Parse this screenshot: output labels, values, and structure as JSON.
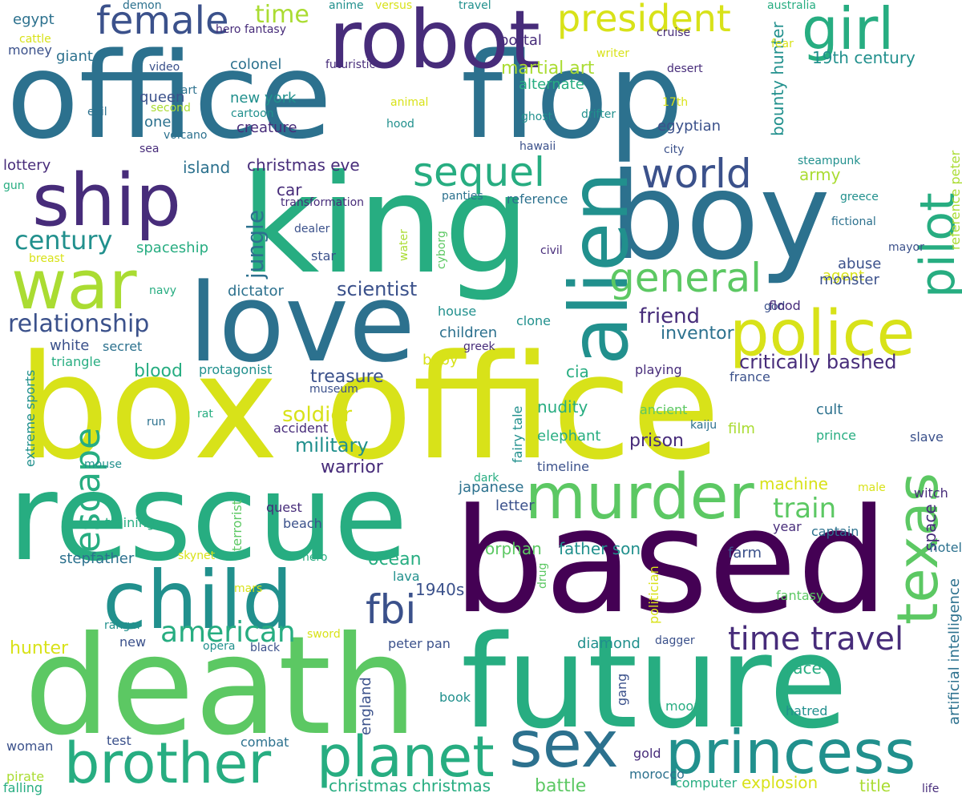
{
  "palette": {
    "p0": "#440154",
    "p1": "#472c7a",
    "p2": "#3b518b",
    "p3": "#2c718e",
    "p4": "#21908d",
    "p5": "#27ad81",
    "p6": "#5cc863",
    "p7": "#aadc32",
    "p8": "#d8e219"
  },
  "words": [
    {
      "text": "office",
      "color": "p3"
    },
    {
      "text": "flop",
      "color": "p3"
    },
    {
      "text": "box office",
      "color": "p8"
    },
    {
      "text": "king",
      "color": "p5"
    },
    {
      "text": "boy",
      "color": "p3"
    },
    {
      "text": "based",
      "color": "p0"
    },
    {
      "text": "death",
      "color": "p6"
    },
    {
      "text": "future",
      "color": "p5"
    },
    {
      "text": "rescue",
      "color": "p5"
    },
    {
      "text": "love",
      "color": "p3"
    },
    {
      "text": "robot",
      "color": "p1"
    },
    {
      "text": "ship",
      "color": "p1"
    },
    {
      "text": "war",
      "color": "p7"
    },
    {
      "text": "child",
      "color": "p4"
    },
    {
      "text": "alien",
      "color": "p4"
    },
    {
      "text": "murder",
      "color": "p6"
    },
    {
      "text": "police",
      "color": "p8"
    },
    {
      "text": "princess",
      "color": "p4"
    },
    {
      "text": "sex",
      "color": "p3"
    },
    {
      "text": "brother",
      "color": "p5"
    },
    {
      "text": "planet",
      "color": "p5"
    },
    {
      "text": "girl",
      "color": "p5"
    },
    {
      "text": "texas",
      "color": "p6"
    },
    {
      "text": "pilot",
      "color": "p5"
    },
    {
      "text": "female",
      "color": "p2"
    },
    {
      "text": "president",
      "color": "p8"
    },
    {
      "text": "sequel",
      "color": "p5"
    },
    {
      "text": "world",
      "color": "p2"
    },
    {
      "text": "general",
      "color": "p6"
    },
    {
      "text": "escape",
      "color": "p5"
    },
    {
      "text": "fbi",
      "color": "p2"
    },
    {
      "text": "time travel",
      "color": "p1"
    },
    {
      "text": "american",
      "color": "p5"
    },
    {
      "text": "train",
      "color": "p6"
    },
    {
      "text": "century",
      "color": "p4"
    },
    {
      "text": "relationship",
      "color": "p2"
    },
    {
      "text": "time",
      "color": "p7"
    },
    {
      "text": "jungle",
      "color": "p3"
    },
    {
      "text": "critically bashed",
      "color": "p1"
    },
    {
      "text": "friend",
      "color": "p1"
    },
    {
      "text": "treasure",
      "color": "p2"
    },
    {
      "text": "soldier",
      "color": "p8"
    },
    {
      "text": "military",
      "color": "p4"
    },
    {
      "text": "scientist",
      "color": "p2"
    },
    {
      "text": "christmas christmas",
      "color": "p5"
    },
    {
      "text": "battle",
      "color": "p6"
    },
    {
      "text": "explosion",
      "color": "p8"
    },
    {
      "text": "19th century",
      "color": "p4"
    },
    {
      "text": "martial art",
      "color": "p7"
    },
    {
      "text": "bounty hunter",
      "color": "p4"
    },
    {
      "text": "artificial intelligence",
      "color": "p3"
    },
    {
      "text": "reference peter",
      "color": "p7"
    },
    {
      "text": "orphan",
      "color": "p6"
    },
    {
      "text": "father son",
      "color": "p4"
    },
    {
      "text": "prison",
      "color": "p1"
    },
    {
      "text": "warrior",
      "color": "p1"
    },
    {
      "text": "machine",
      "color": "p8"
    },
    {
      "text": "space",
      "color": "p1"
    },
    {
      "text": "inventor",
      "color": "p3"
    },
    {
      "text": "christmas eve",
      "color": "p1"
    },
    {
      "text": "island",
      "color": "p3"
    },
    {
      "text": "blood",
      "color": "p5"
    },
    {
      "text": "ocean",
      "color": "p5"
    },
    {
      "text": "race",
      "color": "p5"
    },
    {
      "text": "1940s",
      "color": "p2"
    },
    {
      "text": "england",
      "color": "p2"
    },
    {
      "text": "agent",
      "color": "p8"
    },
    {
      "text": "army",
      "color": "p7"
    },
    {
      "text": "hunter",
      "color": "p8"
    },
    {
      "text": "title",
      "color": "p7"
    },
    {
      "text": "colonel",
      "color": "p3"
    },
    {
      "text": "new york",
      "color": "p4"
    },
    {
      "text": "creature",
      "color": "p1"
    },
    {
      "text": "car",
      "color": "p1"
    },
    {
      "text": "children",
      "color": "p3"
    },
    {
      "text": "nudity",
      "color": "p5"
    },
    {
      "text": "cia",
      "color": "p5"
    },
    {
      "text": "elephant",
      "color": "p5"
    },
    {
      "text": "diamond",
      "color": "p4"
    },
    {
      "text": "farm",
      "color": "p2"
    },
    {
      "text": "film",
      "color": "p7"
    },
    {
      "text": "cult",
      "color": "p3"
    },
    {
      "text": "abuse",
      "color": "p2"
    },
    {
      "text": "monster",
      "color": "p2"
    },
    {
      "text": "portal",
      "color": "p1"
    },
    {
      "text": "alternate",
      "color": "p5"
    },
    {
      "text": "egyptian",
      "color": "p2"
    },
    {
      "text": "one",
      "color": "p3"
    },
    {
      "text": "queen",
      "color": "p2"
    },
    {
      "text": "giant",
      "color": "p3"
    },
    {
      "text": "egypt",
      "color": "p3"
    },
    {
      "text": "money",
      "color": "p2"
    },
    {
      "text": "lottery",
      "color": "p1"
    },
    {
      "text": "spaceship",
      "color": "p5"
    },
    {
      "text": "dictator",
      "color": "p3"
    },
    {
      "text": "white",
      "color": "p2"
    },
    {
      "text": "secret",
      "color": "p3"
    },
    {
      "text": "triangle",
      "color": "p5"
    },
    {
      "text": "protagonist",
      "color": "p4"
    },
    {
      "text": "extreme sports",
      "color": "p4"
    },
    {
      "text": "terrorist",
      "color": "p6"
    },
    {
      "text": "stepfather",
      "color": "p3"
    },
    {
      "text": "training",
      "color": "p5"
    },
    {
      "text": "quest",
      "color": "p1"
    },
    {
      "text": "beach",
      "color": "p2"
    },
    {
      "text": "letter",
      "color": "p2"
    },
    {
      "text": "japanese",
      "color": "p3"
    },
    {
      "text": "playing",
      "color": "p1"
    },
    {
      "text": "france",
      "color": "p2"
    },
    {
      "text": "witch",
      "color": "p1"
    },
    {
      "text": "hotel",
      "color": "p3"
    },
    {
      "text": "year",
      "color": "p1"
    },
    {
      "text": "captain",
      "color": "p3"
    },
    {
      "text": "slave",
      "color": "p2"
    },
    {
      "text": "prince",
      "color": "p5"
    },
    {
      "text": "woman",
      "color": "p2"
    },
    {
      "text": "test",
      "color": "p2"
    },
    {
      "text": "combat",
      "color": "p3"
    },
    {
      "text": "book",
      "color": "p4"
    },
    {
      "text": "gang",
      "color": "p2"
    },
    {
      "text": "moon",
      "color": "p5"
    },
    {
      "text": "hatred",
      "color": "p4"
    },
    {
      "text": "gold",
      "color": "p1"
    },
    {
      "text": "morocco",
      "color": "p3"
    },
    {
      "text": "computer",
      "color": "p5"
    },
    {
      "text": "life",
      "color": "p1"
    },
    {
      "text": "pirate",
      "color": "p7"
    },
    {
      "text": "falling",
      "color": "p5"
    },
    {
      "text": "fantasy",
      "color": "p6"
    },
    {
      "text": "politician",
      "color": "p8"
    },
    {
      "text": "drug",
      "color": "p6"
    },
    {
      "text": "dagger",
      "color": "p2"
    },
    {
      "text": "peter pan",
      "color": "p2"
    },
    {
      "text": "lava",
      "color": "p4"
    },
    {
      "text": "hero",
      "color": "p5"
    },
    {
      "text": "skynet",
      "color": "p8"
    },
    {
      "text": "new",
      "color": "p2"
    },
    {
      "text": "ranger",
      "color": "p4"
    },
    {
      "text": "mars",
      "color": "p8"
    },
    {
      "text": "sword",
      "color": "p8"
    },
    {
      "text": "opera",
      "color": "p4"
    },
    {
      "text": "black",
      "color": "p2"
    },
    {
      "text": "mouse",
      "color": "p4"
    },
    {
      "text": "rat",
      "color": "p5"
    },
    {
      "text": "run",
      "color": "p3"
    },
    {
      "text": "accident",
      "color": "p1"
    },
    {
      "text": "museum",
      "color": "p2"
    },
    {
      "text": "kaiju",
      "color": "p3"
    },
    {
      "text": "ancient",
      "color": "p6"
    },
    {
      "text": "fairy tale",
      "color": "p4"
    },
    {
      "text": "dark",
      "color": "p5"
    },
    {
      "text": "male",
      "color": "p8"
    },
    {
      "text": "timeline",
      "color": "p2"
    },
    {
      "text": "baby",
      "color": "p8"
    },
    {
      "text": "greek",
      "color": "p1"
    },
    {
      "text": "clone",
      "color": "p4"
    },
    {
      "text": "house",
      "color": "p4"
    },
    {
      "text": "god",
      "color": "p2"
    },
    {
      "text": "flood",
      "color": "p1"
    },
    {
      "text": "civil",
      "color": "p1"
    },
    {
      "text": "star",
      "color": "p2"
    },
    {
      "text": "dealer",
      "color": "p2"
    },
    {
      "text": "cyborg",
      "color": "p6"
    },
    {
      "text": "water",
      "color": "p7"
    },
    {
      "text": "reference",
      "color": "p3"
    },
    {
      "text": "panties",
      "color": "p3"
    },
    {
      "text": "transformation",
      "color": "p1"
    },
    {
      "text": "gun",
      "color": "p5"
    },
    {
      "text": "breast",
      "color": "p8"
    },
    {
      "text": "navy",
      "color": "p5"
    },
    {
      "text": "mayor",
      "color": "p2"
    },
    {
      "text": "fictional",
      "color": "p3"
    },
    {
      "text": "greece",
      "color": "p4"
    },
    {
      "text": "steampunk",
      "color": "p4"
    },
    {
      "text": "city",
      "color": "p2"
    },
    {
      "text": "hawaii",
      "color": "p2"
    },
    {
      "text": "ghost",
      "color": "p4"
    },
    {
      "text": "drifter",
      "color": "p4"
    },
    {
      "text": "hood",
      "color": "p4"
    },
    {
      "text": "animal",
      "color": "p8"
    },
    {
      "text": "17th",
      "color": "p8"
    },
    {
      "text": "desert",
      "color": "p1"
    },
    {
      "text": "cruise",
      "color": "p1"
    },
    {
      "text": "writer",
      "color": "p8"
    },
    {
      "text": "part",
      "color": "p3"
    },
    {
      "text": "futuristic",
      "color": "p1"
    },
    {
      "text": "video",
      "color": "p2"
    },
    {
      "text": "cartoon",
      "color": "p4"
    },
    {
      "text": "volcano",
      "color": "p3"
    },
    {
      "text": "evil",
      "color": "p3"
    },
    {
      "text": "second",
      "color": "p7"
    },
    {
      "text": "sea",
      "color": "p1"
    },
    {
      "text": "cattle",
      "color": "p8"
    },
    {
      "text": "demon",
      "color": "p3"
    },
    {
      "text": "hero fantasy",
      "color": "p1"
    },
    {
      "text": "anime",
      "color": "p4"
    },
    {
      "text": "versus",
      "color": "p8"
    },
    {
      "text": "travel",
      "color": "p4"
    },
    {
      "text": "australia",
      "color": "p5"
    },
    {
      "text": "fear",
      "color": "p8"
    }
  ]
}
